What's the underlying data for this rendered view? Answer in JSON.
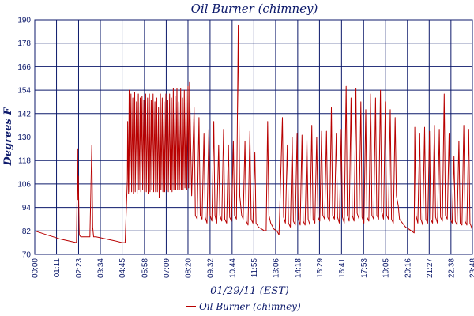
{
  "chart_data": {
    "type": "line",
    "title": "Oil Burner (chimney)",
    "xlabel": "01/29/11 (EST)",
    "ylabel": "Degrees F",
    "ylim": [
      70,
      190
    ],
    "xlim": [
      0,
      1428
    ],
    "yticks": [
      70,
      82,
      94,
      106,
      118,
      130,
      142,
      154,
      166,
      178,
      190
    ],
    "xticks": [
      "00:00",
      "01:11",
      "02:23",
      "03:34",
      "04:45",
      "05:58",
      "07:09",
      "08:20",
      "09:32",
      "10:44",
      "11:55",
      "13:06",
      "14:18",
      "15:29",
      "16:41",
      "17:53",
      "19:05",
      "20:16",
      "21:27",
      "22:38",
      "23:48"
    ],
    "xtick_minutes": [
      0,
      71,
      143,
      214,
      285,
      358,
      429,
      500,
      572,
      644,
      715,
      786,
      858,
      929,
      1001,
      1073,
      1145,
      1216,
      1287,
      1358,
      1428
    ],
    "grid": true,
    "legend_position": "bottom-center",
    "colors": {
      "series": "#b80000",
      "grid": "#0d1a6b",
      "text": "#0d1a6b"
    },
    "series": [
      {
        "name": "Oil Burner (chimney)",
        "points": [
          [
            0,
            82
          ],
          [
            20,
            81
          ],
          [
            40,
            80
          ],
          [
            60,
            79
          ],
          [
            80,
            78
          ],
          [
            136,
            76
          ],
          [
            140,
            124
          ],
          [
            141,
            98
          ],
          [
            142,
            110
          ],
          [
            145,
            80
          ],
          [
            150,
            79
          ],
          [
            180,
            79
          ],
          [
            186,
            126
          ],
          [
            189,
            84
          ],
          [
            192,
            79
          ],
          [
            200,
            79
          ],
          [
            230,
            78
          ],
          [
            260,
            77
          ],
          [
            285,
            76
          ],
          [
            295,
            76
          ],
          [
            302,
            108
          ],
          [
            303,
            138
          ],
          [
            306,
            101
          ],
          [
            308,
            154
          ],
          [
            310,
            102
          ],
          [
            314,
            152
          ],
          [
            316,
            102
          ],
          [
            320,
            150
          ],
          [
            322,
            101
          ],
          [
            326,
            153
          ],
          [
            328,
            102
          ],
          [
            332,
            148
          ],
          [
            334,
            101
          ],
          [
            338,
            152
          ],
          [
            340,
            103
          ],
          [
            344,
            150
          ],
          [
            346,
            102
          ],
          [
            350,
            151
          ],
          [
            352,
            103
          ],
          [
            356,
            149
          ],
          [
            358,
            102
          ],
          [
            362,
            152
          ],
          [
            364,
            102
          ],
          [
            368,
            150
          ],
          [
            370,
            101
          ],
          [
            374,
            152
          ],
          [
            376,
            102
          ],
          [
            380,
            149
          ],
          [
            382,
            103
          ],
          [
            386,
            152
          ],
          [
            388,
            102
          ],
          [
            392,
            148
          ],
          [
            394,
            102
          ],
          [
            398,
            150
          ],
          [
            400,
            102
          ],
          [
            404,
            145
          ],
          [
            406,
            99
          ],
          [
            410,
            152
          ],
          [
            412,
            103
          ],
          [
            416,
            150
          ],
          [
            418,
            102
          ],
          [
            422,
            148
          ],
          [
            424,
            102
          ],
          [
            428,
            152
          ],
          [
            430,
            103
          ],
          [
            434,
            149
          ],
          [
            436,
            102
          ],
          [
            440,
            152
          ],
          [
            442,
            103
          ],
          [
            446,
            150
          ],
          [
            448,
            102
          ],
          [
            452,
            155
          ],
          [
            454,
            103
          ],
          [
            458,
            151
          ],
          [
            460,
            103
          ],
          [
            464,
            155
          ],
          [
            466,
            103
          ],
          [
            470,
            148
          ],
          [
            472,
            103
          ],
          [
            476,
            155
          ],
          [
            478,
            103
          ],
          [
            482,
            150
          ],
          [
            484,
            103
          ],
          [
            488,
            154
          ],
          [
            490,
            104
          ],
          [
            494,
            154
          ],
          [
            496,
            103
          ],
          [
            500,
            156
          ],
          [
            502,
            104
          ],
          [
            505,
            158
          ],
          [
            512,
            100
          ],
          [
            520,
            145
          ],
          [
            524,
            90
          ],
          [
            530,
            88
          ],
          [
            536,
            140
          ],
          [
            540,
            90
          ],
          [
            546,
            88
          ],
          [
            552,
            132
          ],
          [
            556,
            89
          ],
          [
            562,
            86
          ],
          [
            568,
            134
          ],
          [
            572,
            90
          ],
          [
            578,
            87
          ],
          [
            584,
            138
          ],
          [
            588,
            90
          ],
          [
            594,
            86
          ],
          [
            600,
            126
          ],
          [
            604,
            90
          ],
          [
            610,
            87
          ],
          [
            616,
            134
          ],
          [
            620,
            88
          ],
          [
            626,
            86
          ],
          [
            632,
            126
          ],
          [
            636,
            89
          ],
          [
            642,
            87
          ],
          [
            648,
            128
          ],
          [
            652,
            90
          ],
          [
            658,
            88
          ],
          [
            664,
            187
          ],
          [
            666,
            145
          ],
          [
            669,
            100
          ],
          [
            675,
            90
          ],
          [
            680,
            88
          ],
          [
            686,
            128
          ],
          [
            690,
            87
          ],
          [
            696,
            85
          ],
          [
            702,
            133
          ],
          [
            706,
            88
          ],
          [
            712,
            86
          ],
          [
            718,
            122
          ],
          [
            722,
            86
          ],
          [
            730,
            84
          ],
          [
            740,
            83
          ],
          [
            750,
            82
          ],
          [
            755,
            82
          ],
          [
            760,
            138
          ],
          [
            764,
            90
          ],
          [
            770,
            86
          ],
          [
            780,
            83
          ],
          [
            790,
            82
          ],
          [
            797,
            80
          ],
          [
            808,
            140
          ],
          [
            812,
            89
          ],
          [
            818,
            86
          ],
          [
            824,
            126
          ],
          [
            828,
            86
          ],
          [
            834,
            84
          ],
          [
            840,
            130
          ],
          [
            844,
            87
          ],
          [
            850,
            85
          ],
          [
            856,
            132
          ],
          [
            860,
            88
          ],
          [
            866,
            85
          ],
          [
            872,
            131
          ],
          [
            876,
            87
          ],
          [
            882,
            85
          ],
          [
            888,
            129
          ],
          [
            892,
            88
          ],
          [
            898,
            85
          ],
          [
            904,
            136
          ],
          [
            908,
            88
          ],
          [
            914,
            86
          ],
          [
            920,
            130
          ],
          [
            924,
            89
          ],
          [
            930,
            87
          ],
          [
            936,
            133
          ],
          [
            940,
            90
          ],
          [
            946,
            88
          ],
          [
            952,
            133
          ],
          [
            956,
            89
          ],
          [
            962,
            87
          ],
          [
            968,
            145
          ],
          [
            972,
            90
          ],
          [
            978,
            88
          ],
          [
            984,
            132
          ],
          [
            988,
            89
          ],
          [
            994,
            86
          ],
          [
            1000,
            134
          ],
          [
            1004,
            89
          ],
          [
            1010,
            86
          ],
          [
            1016,
            156
          ],
          [
            1020,
            90
          ],
          [
            1026,
            87
          ],
          [
            1032,
            150
          ],
          [
            1036,
            90
          ],
          [
            1042,
            87
          ],
          [
            1048,
            155
          ],
          [
            1052,
            91
          ],
          [
            1058,
            88
          ],
          [
            1064,
            148
          ],
          [
            1068,
            89
          ],
          [
            1074,
            86
          ],
          [
            1080,
            144
          ],
          [
            1084,
            89
          ],
          [
            1090,
            87
          ],
          [
            1096,
            152
          ],
          [
            1100,
            90
          ],
          [
            1106,
            88
          ],
          [
            1112,
            150
          ],
          [
            1116,
            90
          ],
          [
            1122,
            88
          ],
          [
            1128,
            154
          ],
          [
            1132,
            92
          ],
          [
            1138,
            88
          ],
          [
            1144,
            148
          ],
          [
            1148,
            90
          ],
          [
            1154,
            88
          ],
          [
            1160,
            144
          ],
          [
            1164,
            88
          ],
          [
            1170,
            86
          ],
          [
            1176,
            140
          ],
          [
            1180,
            100
          ],
          [
            1186,
            95
          ],
          [
            1190,
            88
          ],
          [
            1200,
            86
          ],
          [
            1210,
            84
          ],
          [
            1220,
            83
          ],
          [
            1238,
            81
          ],
          [
            1240,
            135
          ],
          [
            1244,
            90
          ],
          [
            1250,
            86
          ],
          [
            1256,
            132
          ],
          [
            1260,
            88
          ],
          [
            1266,
            85
          ],
          [
            1272,
            135
          ],
          [
            1276,
            88
          ],
          [
            1282,
            86
          ],
          [
            1288,
            133
          ],
          [
            1292,
            88
          ],
          [
            1298,
            86
          ],
          [
            1304,
            136
          ],
          [
            1308,
            89
          ],
          [
            1314,
            86
          ],
          [
            1320,
            134
          ],
          [
            1324,
            89
          ],
          [
            1330,
            87
          ],
          [
            1336,
            152
          ],
          [
            1340,
            90
          ],
          [
            1346,
            88
          ],
          [
            1352,
            132
          ],
          [
            1356,
            88
          ],
          [
            1362,
            86
          ],
          [
            1368,
            120
          ],
          [
            1372,
            87
          ],
          [
            1378,
            85
          ],
          [
            1384,
            128
          ],
          [
            1388,
            86
          ],
          [
            1394,
            85
          ],
          [
            1400,
            136
          ],
          [
            1404,
            87
          ],
          [
            1410,
            85
          ],
          [
            1416,
            134
          ],
          [
            1420,
            86
          ],
          [
            1425,
            84
          ],
          [
            1428,
            82
          ]
        ]
      }
    ]
  }
}
